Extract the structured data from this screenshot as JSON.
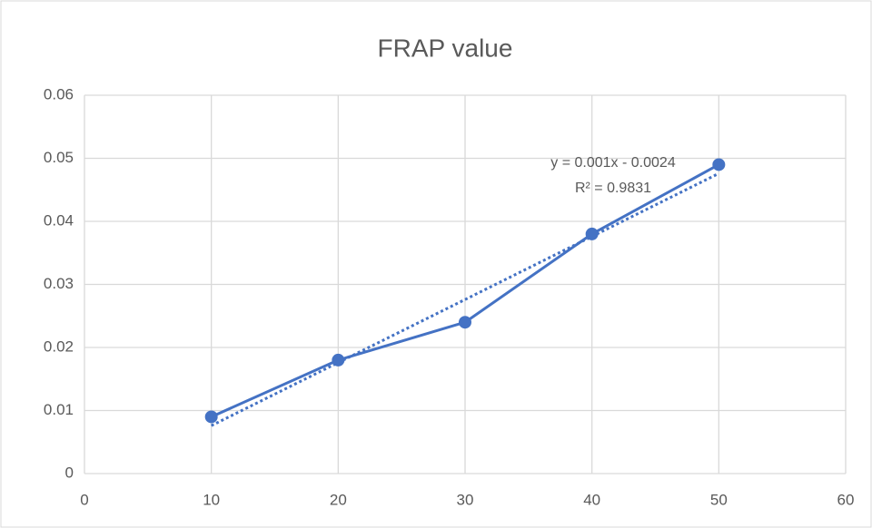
{
  "chart_data": {
    "type": "scatter-line",
    "title": "FRAP value",
    "x": [
      10,
      20,
      30,
      40,
      50
    ],
    "series": [
      {
        "color": "#4472c4",
        "values": [
          0.009,
          0.018,
          0.024,
          0.038,
          0.049
        ]
      }
    ],
    "xlim": [
      0,
      60
    ],
    "xticks": [
      0,
      10,
      20,
      30,
      40,
      50,
      60
    ],
    "ylim": [
      0,
      0.06
    ],
    "yticks": [
      0,
      0.01,
      0.02,
      0.03,
      0.04,
      0.05,
      0.06
    ],
    "grid": true,
    "trendline": "linear",
    "annotations": [
      "y = 0.001x - 0.0024",
      "R² = 0.9831"
    ]
  }
}
